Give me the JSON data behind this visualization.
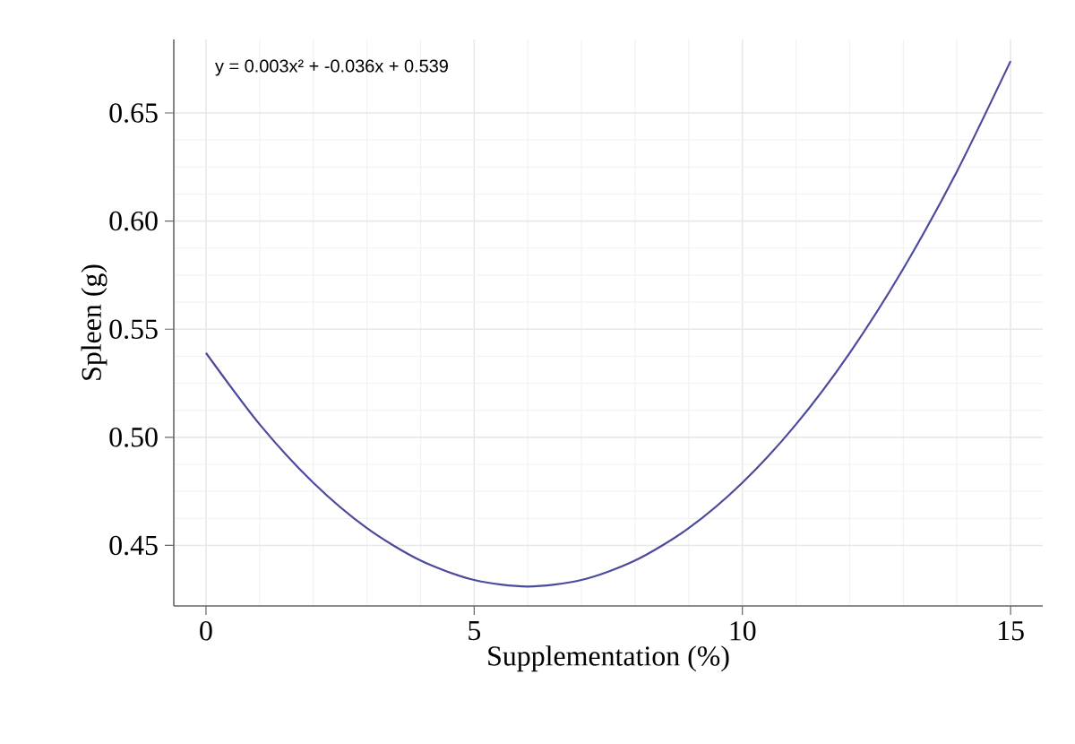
{
  "chart_data": {
    "type": "line",
    "xlabel": "Supplementation (%)",
    "ylabel": "Spleen (g)",
    "annotations": [
      "y = 0.003x² + -0.036x + 0.539"
    ],
    "x": [
      0,
      1,
      2,
      3,
      4,
      5,
      6,
      7,
      8,
      9,
      10,
      11,
      12,
      13,
      14,
      15
    ],
    "series": [
      {
        "color": "#4b4a9c",
        "values": [
          0.539,
          0.506,
          0.479,
          0.458,
          0.443,
          0.434,
          0.431,
          0.434,
          0.443,
          0.458,
          0.479,
          0.506,
          0.539,
          0.578,
          0.623,
          0.674
        ]
      }
    ],
    "xlim": [
      -0.6,
      15.6
    ],
    "ylim": [
      0.422,
      0.684
    ],
    "xticks": [
      0,
      5,
      10,
      15
    ],
    "yticks": [
      0.45,
      {
        "value": 0.5,
        "label": "0.50"
      },
      0.55,
      {
        "value": 0.6,
        "label": "0.60"
      },
      0.65
    ],
    "grid": true,
    "marker": "none",
    "line_style": "solid"
  }
}
